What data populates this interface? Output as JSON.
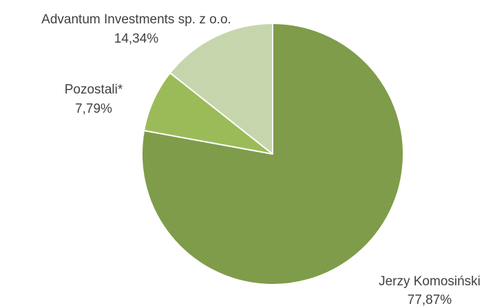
{
  "chart_data": {
    "type": "pie",
    "title": "",
    "series": [
      {
        "values": [
          77.87,
          7.79,
          14.34
        ]
      }
    ],
    "slices": [
      {
        "name": "Jerzy Komosiński",
        "value": 77.87,
        "value_label": "77,87%",
        "color": "#7f9c4a"
      },
      {
        "name": "Pozostali*",
        "value": 7.79,
        "value_label": "7,79%",
        "color": "#9bbb59"
      },
      {
        "name": "Advantum Investments sp. z o.o.",
        "value": 14.34,
        "value_label": "14,34%",
        "color": "#c6d6ac"
      }
    ],
    "start": "12 o'clock",
    "direction": "clockwise",
    "slice_border_color": "#ffffff",
    "legend": "none",
    "data_labels": "outside, name above percentage"
  }
}
